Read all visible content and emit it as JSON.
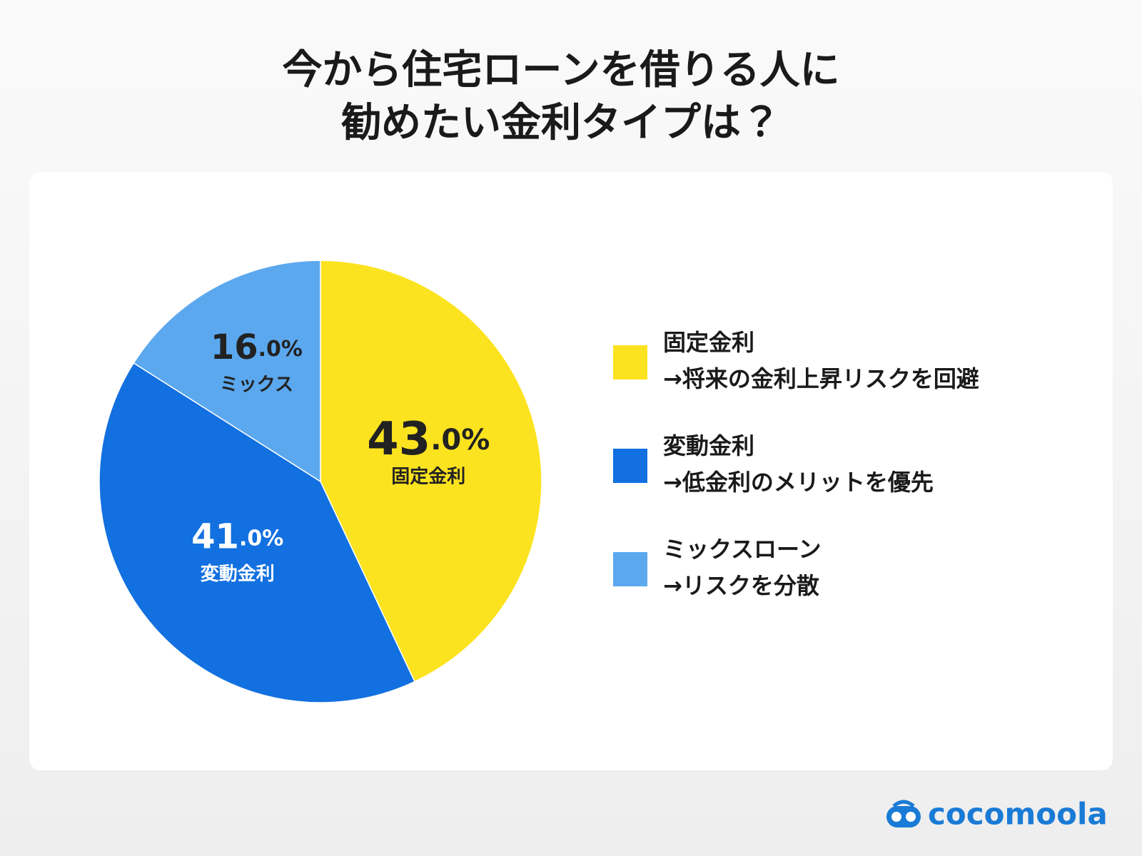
{
  "chart_data": {
    "type": "pie",
    "title": [
      "今から住宅ローンを借りる人に",
      "勧めたい金利タイプは？"
    ],
    "categories": [
      "固定金利",
      "変動金利",
      "ミックス"
    ],
    "values": [
      43,
      41,
      16
    ],
    "value_labels": [
      "43.0%",
      "41.0%",
      "16.0%"
    ],
    "colors": [
      "#fce31f",
      "#1270e0",
      "#5ba8ef"
    ],
    "legend": [
      [
        "固定金利",
        "→将来の金利上昇リスクを回避"
      ],
      [
        "変動金利",
        "→低金利のメリットを優先"
      ],
      [
        "ミックスローン",
        "→リスクを分散"
      ]
    ],
    "logo": "cocomoola"
  }
}
